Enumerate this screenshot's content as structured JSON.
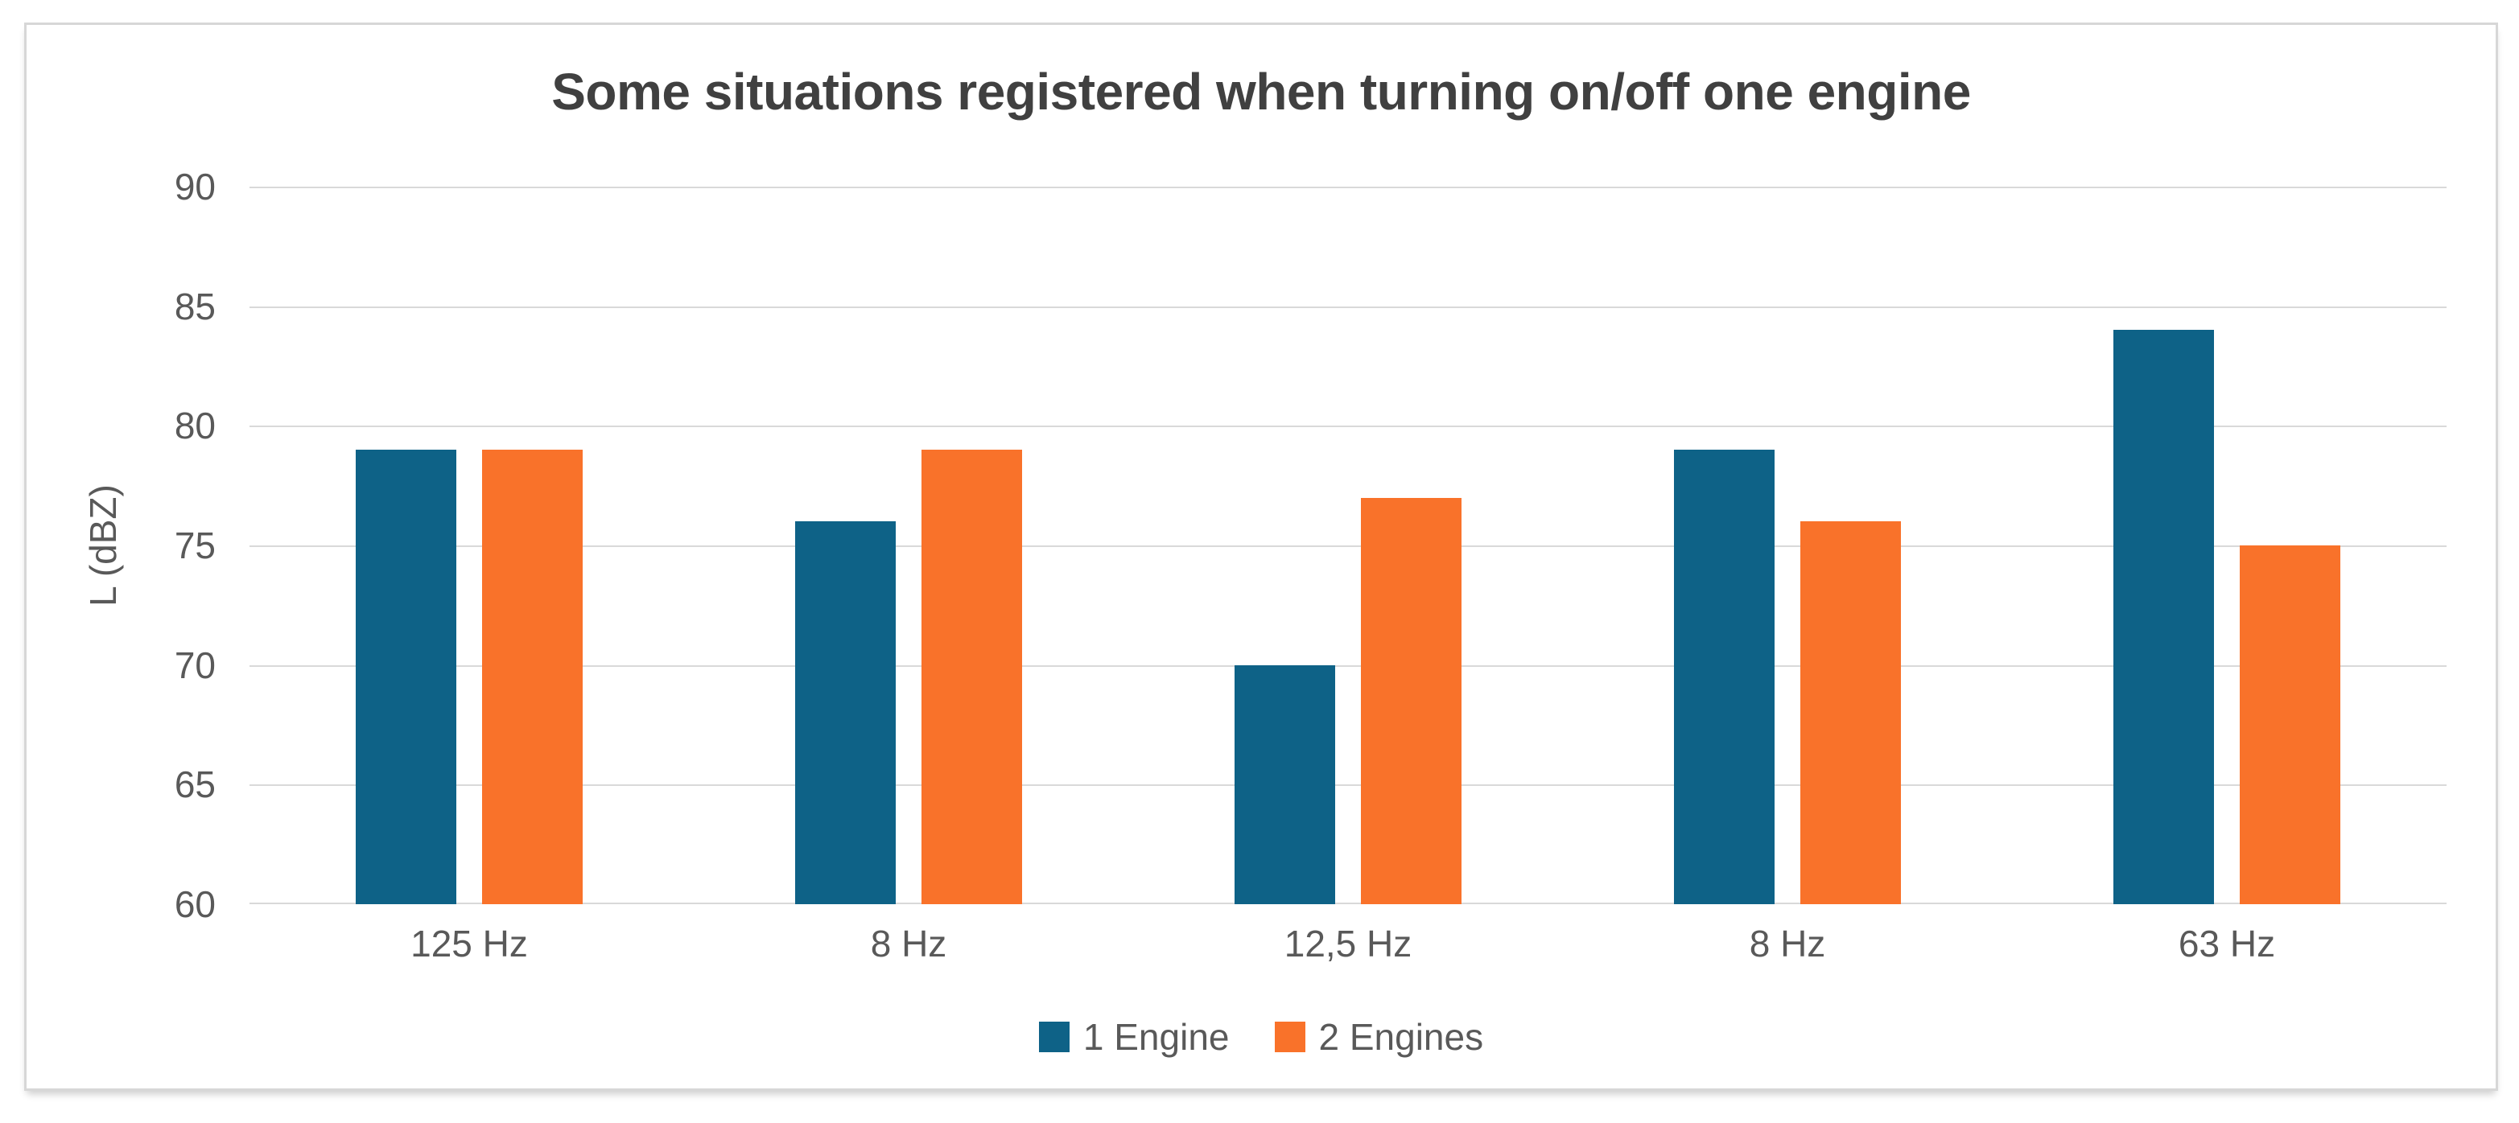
{
  "chart_data": {
    "type": "bar",
    "title": "Some situations registered when turning on/off one engine",
    "xlabel": "",
    "ylabel": "L (dBZ)",
    "ylim": [
      60,
      90
    ],
    "yticks": [
      90,
      85,
      80,
      75,
      70,
      65,
      60
    ],
    "grid": "horizontal-on",
    "legend_position": "bottom-center",
    "categories": [
      "125 Hz",
      "8 Hz",
      "12,5 Hz",
      "8 Hz",
      "63 Hz"
    ],
    "series": [
      {
        "name": "1 Engine",
        "color": "#0e6287",
        "values": [
          79,
          76,
          70,
          79,
          84
        ]
      },
      {
        "name": "2 Engines",
        "color": "#f9722a",
        "values": [
          79,
          79,
          77,
          76,
          75
        ]
      }
    ],
    "colors": {
      "title_text": "#404040",
      "axis_text": "#595959",
      "gridline": "#d9d9d9",
      "frame_border": "#d7d7d7",
      "background": "#ffffff"
    }
  }
}
